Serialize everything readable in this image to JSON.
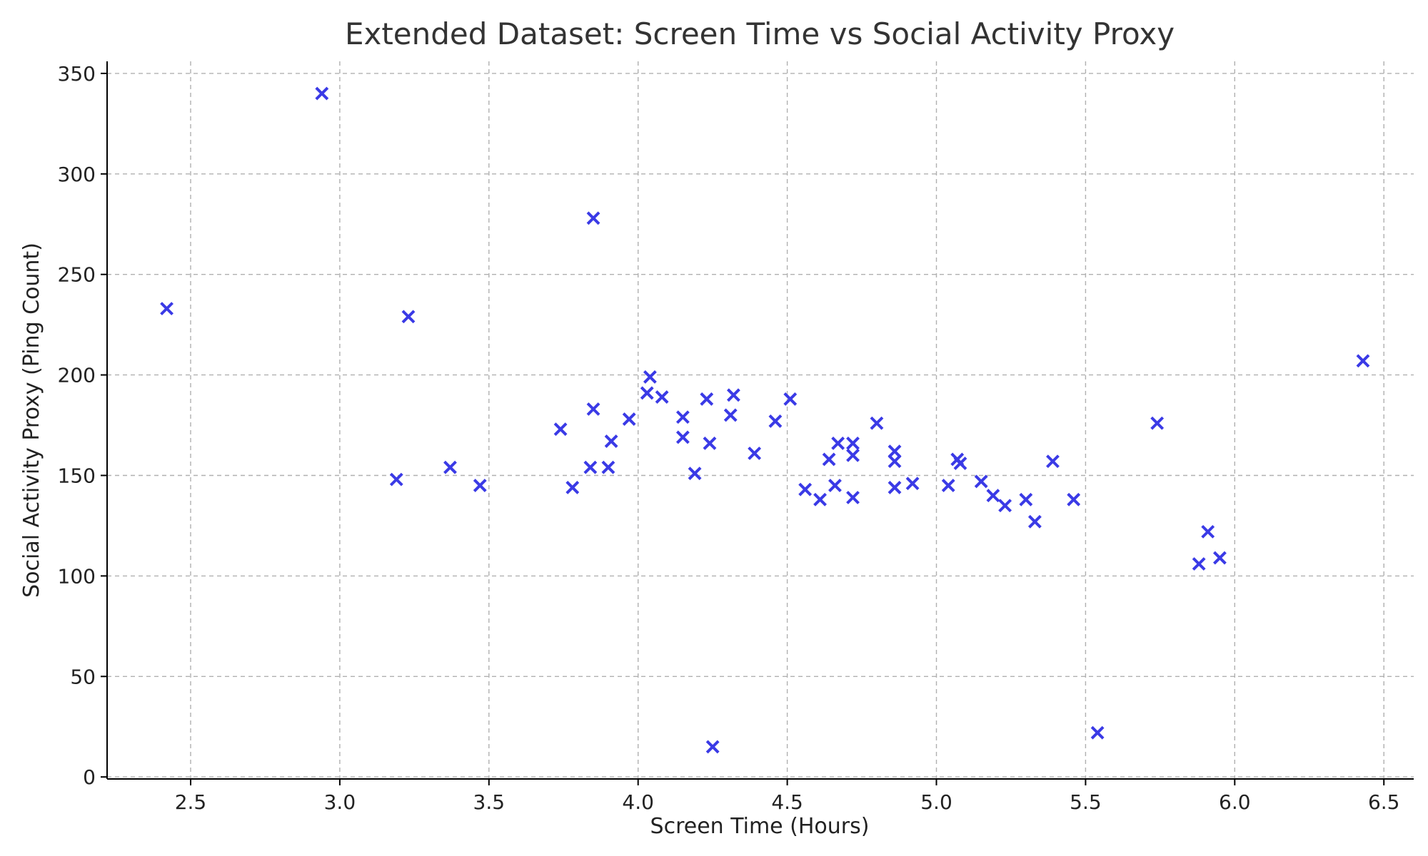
{
  "chart_data": {
    "type": "scatter",
    "title": "Extended Dataset: Screen Time vs Social Activity Proxy",
    "xlabel": "Screen Time (Hours)",
    "ylabel": "Social Activity Proxy (Ping Count)",
    "xlim": [
      2.22,
      6.6
    ],
    "ylim": [
      -1,
      356
    ],
    "x_ticks": [
      2.5,
      3.0,
      3.5,
      4.0,
      4.5,
      5.0,
      5.5,
      6.0,
      6.5
    ],
    "x_tick_labels": [
      "2.5",
      "3.0",
      "3.5",
      "4.0",
      "4.5",
      "5.0",
      "5.5",
      "6.0",
      "6.5"
    ],
    "y_ticks": [
      0,
      50,
      100,
      150,
      200,
      250,
      300,
      350
    ],
    "y_tick_labels": [
      "0",
      "50",
      "100",
      "150",
      "200",
      "250",
      "300",
      "350"
    ],
    "grid": true,
    "marker": "x",
    "color": "#3a3ae6",
    "points": [
      {
        "x": 2.42,
        "y": 233
      },
      {
        "x": 2.94,
        "y": 340
      },
      {
        "x": 3.19,
        "y": 148
      },
      {
        "x": 3.23,
        "y": 229
      },
      {
        "x": 3.37,
        "y": 154
      },
      {
        "x": 3.47,
        "y": 145
      },
      {
        "x": 3.74,
        "y": 173
      },
      {
        "x": 3.78,
        "y": 144
      },
      {
        "x": 3.84,
        "y": 154
      },
      {
        "x": 3.85,
        "y": 183
      },
      {
        "x": 3.85,
        "y": 278
      },
      {
        "x": 3.9,
        "y": 154
      },
      {
        "x": 3.91,
        "y": 167
      },
      {
        "x": 3.97,
        "y": 178
      },
      {
        "x": 4.03,
        "y": 191
      },
      {
        "x": 4.04,
        "y": 199
      },
      {
        "x": 4.08,
        "y": 189
      },
      {
        "x": 4.15,
        "y": 179
      },
      {
        "x": 4.15,
        "y": 169
      },
      {
        "x": 4.19,
        "y": 151
      },
      {
        "x": 4.23,
        "y": 188
      },
      {
        "x": 4.24,
        "y": 166
      },
      {
        "x": 4.25,
        "y": 15
      },
      {
        "x": 4.31,
        "y": 180
      },
      {
        "x": 4.32,
        "y": 190
      },
      {
        "x": 4.39,
        "y": 161
      },
      {
        "x": 4.46,
        "y": 177
      },
      {
        "x": 4.51,
        "y": 188
      },
      {
        "x": 4.56,
        "y": 143
      },
      {
        "x": 4.61,
        "y": 138
      },
      {
        "x": 4.64,
        "y": 158
      },
      {
        "x": 4.66,
        "y": 145
      },
      {
        "x": 4.67,
        "y": 166
      },
      {
        "x": 4.72,
        "y": 166
      },
      {
        "x": 4.72,
        "y": 160
      },
      {
        "x": 4.72,
        "y": 139
      },
      {
        "x": 4.8,
        "y": 176
      },
      {
        "x": 4.86,
        "y": 162
      },
      {
        "x": 4.86,
        "y": 157
      },
      {
        "x": 4.86,
        "y": 144
      },
      {
        "x": 4.92,
        "y": 146
      },
      {
        "x": 5.04,
        "y": 145
      },
      {
        "x": 5.07,
        "y": 158
      },
      {
        "x": 5.08,
        "y": 156
      },
      {
        "x": 5.15,
        "y": 147
      },
      {
        "x": 5.19,
        "y": 140
      },
      {
        "x": 5.23,
        "y": 135
      },
      {
        "x": 5.3,
        "y": 138
      },
      {
        "x": 5.33,
        "y": 127
      },
      {
        "x": 5.39,
        "y": 157
      },
      {
        "x": 5.46,
        "y": 138
      },
      {
        "x": 5.54,
        "y": 22
      },
      {
        "x": 5.74,
        "y": 176
      },
      {
        "x": 5.88,
        "y": 106
      },
      {
        "x": 5.91,
        "y": 122
      },
      {
        "x": 5.95,
        "y": 109
      },
      {
        "x": 6.43,
        "y": 207
      }
    ]
  }
}
